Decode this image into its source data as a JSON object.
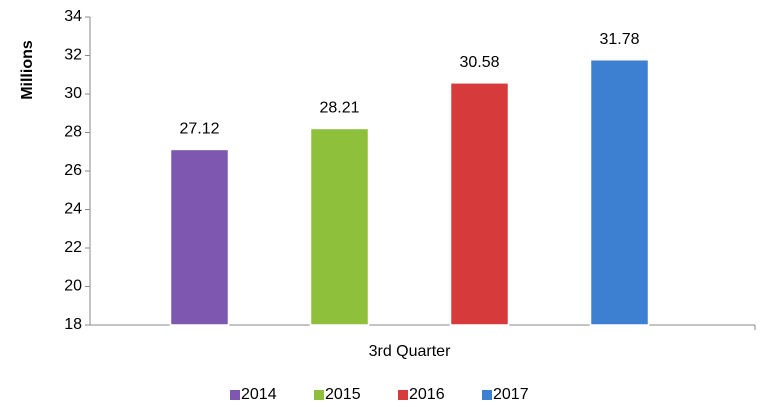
{
  "chart_data": {
    "type": "bar",
    "y_label": "Millions",
    "categories": [
      "3rd Quarter"
    ],
    "series": [
      {
        "name": "2014",
        "color": "#7e57b0",
        "values": [
          27.12
        ]
      },
      {
        "name": "2015",
        "color": "#8fc03c",
        "values": [
          28.21
        ]
      },
      {
        "name": "2016",
        "color": "#d63a3a",
        "values": [
          30.58
        ]
      },
      {
        "name": "2017",
        "color": "#3d7fd0",
        "values": [
          31.78
        ]
      }
    ],
    "ylim": [
      18,
      34
    ],
    "yticks": [
      18,
      20,
      22,
      24,
      26,
      28,
      30,
      32,
      34
    ],
    "grid": false,
    "legend": "bottom"
  }
}
